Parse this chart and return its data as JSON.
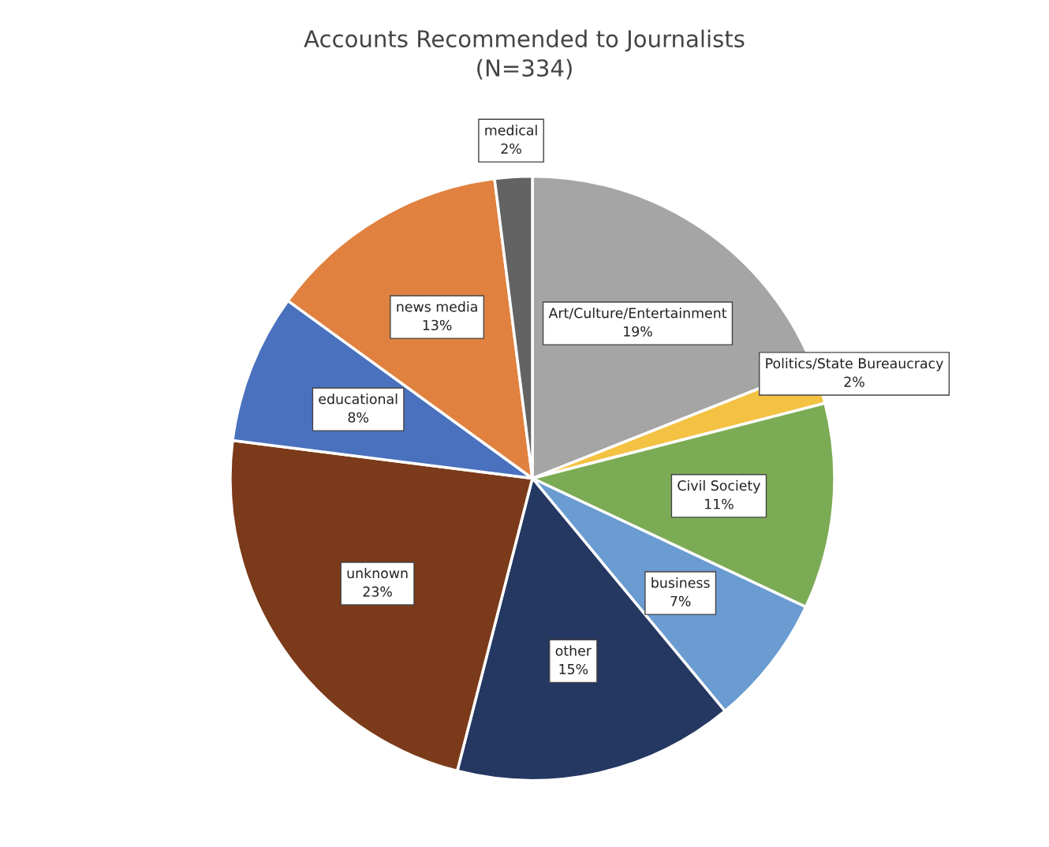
{
  "chart_data": {
    "type": "pie",
    "title": "Accounts Recommended to Journalists\n(N=334)",
    "categories": [
      "Art/Culture/Entertainment",
      "Politics/State Bureaucracy",
      "Civil Society",
      "business",
      "other",
      "unknown",
      "educational",
      "news media",
      "medical"
    ],
    "values": [
      19,
      2,
      11,
      7,
      15,
      23,
      8,
      13,
      2
    ],
    "colors": [
      "#a5a5a5",
      "#f4c242",
      "#7cab55",
      "#6a9bd1",
      "#253862",
      "#7b3a19",
      "#4a71be",
      "#e0813f",
      "#636363"
    ],
    "value_labels": [
      "19%",
      "2%",
      "11%",
      "7%",
      "15%",
      "23%",
      "8%",
      "13%",
      "2%"
    ],
    "legend": false
  }
}
